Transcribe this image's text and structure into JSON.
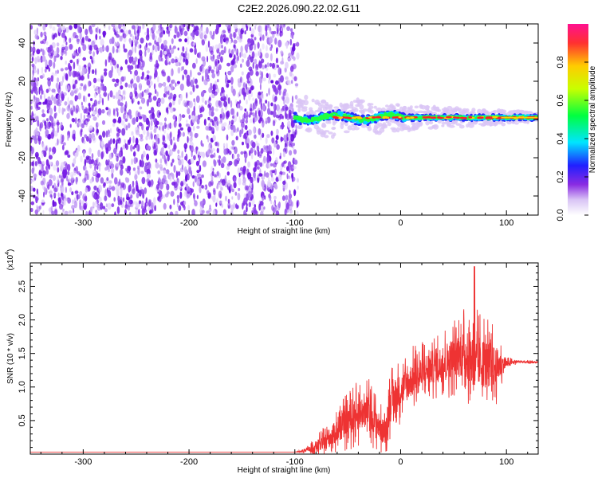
{
  "title": "C2E2.2026.090.22.02.G11",
  "chart_data": [
    {
      "type": "heatmap",
      "xlabel": "Height of straight line (km)",
      "ylabel": "Frequency (Hz)",
      "xlim": [
        -350,
        130
      ],
      "ylim": [
        -50,
        50
      ],
      "x_ticks": [
        -300,
        -200,
        -100,
        0,
        100
      ],
      "x_tick_labels": [
        "-300",
        "-200",
        "-100",
        "0",
        "100"
      ],
      "y_ticks": [
        -40,
        -20,
        0,
        20,
        40
      ],
      "y_tick_labels": [
        "-40",
        "-20",
        "0",
        "20",
        "40"
      ],
      "colorbar": {
        "label": "Normalized spectral amplitude",
        "range": [
          0,
          1
        ],
        "ticks": [
          0,
          0.2,
          0.4,
          0.6,
          0.8
        ],
        "tick_labels": [
          "0.0",
          "0.2",
          "0.4",
          "0.6",
          "0.8"
        ]
      },
      "description_regions": [
        {
          "x_range": [
            -350,
            -100
          ],
          "kind": "noise",
          "amplitude_range": [
            0.0,
            0.15
          ]
        },
        {
          "x_range": [
            -100,
            130
          ],
          "kind": "signal_line",
          "frequency_center": 1,
          "amplitude_range": [
            0.4,
            0.95
          ]
        }
      ]
    },
    {
      "type": "line",
      "xlabel": "Height of straight line (km)",
      "ylabel": "SNR (10 * v/v)",
      "y_scale_label": "(x10",
      "y_scale_exponent": "4",
      "xlim": [
        -350,
        130
      ],
      "ylim": [
        0,
        2.85
      ],
      "x_ticks": [
        -300,
        -200,
        -100,
        0,
        100
      ],
      "x_tick_labels": [
        "-300",
        "-200",
        "-100",
        "0",
        "100"
      ],
      "y_ticks": [
        0.5,
        1.0,
        1.5,
        2.0,
        2.5
      ],
      "y_tick_labels": [
        "0.5",
        "1.0",
        "1.5",
        "2.0",
        "2.5"
      ],
      "series": [
        {
          "name": "SNR",
          "color": "#ee3333",
          "x": [
            -350,
            -100,
            -90,
            -80,
            -70,
            -60,
            -50,
            -40,
            -30,
            -20,
            -15,
            -10,
            0,
            10,
            20,
            30,
            40,
            50,
            60,
            70,
            80,
            90,
            100,
            110,
            120,
            130
          ],
          "y": [
            0.03,
            0.03,
            0.05,
            0.12,
            0.2,
            0.35,
            0.5,
            0.6,
            0.65,
            0.4,
            0.3,
            0.75,
            0.95,
            1.1,
            1.2,
            1.3,
            1.35,
            1.45,
            1.5,
            1.4,
            1.35,
            1.3,
            1.35,
            1.38,
            1.37,
            1.37
          ],
          "noise_amplitude": [
            0,
            0,
            0.05,
            0.15,
            0.25,
            0.35,
            0.45,
            0.5,
            0.5,
            0.4,
            0.35,
            0.55,
            0.5,
            0.5,
            0.55,
            0.5,
            0.55,
            0.6,
            0.7,
            0.8,
            0.75,
            0.6,
            0.1,
            0.04,
            0.03,
            0.03
          ]
        }
      ]
    }
  ],
  "colors": {
    "noise_purple": "#7a1fe6",
    "signal_red": "#ee3333"
  }
}
